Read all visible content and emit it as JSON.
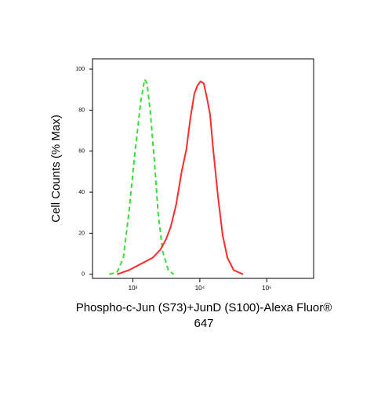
{
  "chart_data": {
    "type": "line",
    "ylabel": "Cell Counts (% Max)",
    "xlabel": [
      "Phospho-c-Jun (S73)+JunD (S100)-Alexa Fluor®",
      "647"
    ],
    "xscale": "log",
    "xlim": [
      250,
      500000
    ],
    "xticks": [
      {
        "value": 1000,
        "label": "10³"
      },
      {
        "value": 10000,
        "label": "10⁴"
      },
      {
        "value": 100000,
        "label": "10⁵"
      }
    ],
    "ylim": [
      -2,
      105
    ],
    "yticks": [
      0,
      20,
      40,
      60,
      80,
      100
    ],
    "grid": false,
    "series": [
      {
        "color": "#33e033",
        "style": "dashed",
        "x": [
          444,
          582,
          722,
          873,
          1056,
          1311,
          1501,
          1629,
          1815,
          2079,
          2378,
          2799,
          3384,
          4093
        ],
        "values": [
          0,
          1,
          8,
          30,
          57,
          84,
          95,
          93,
          80,
          57,
          30,
          11,
          2,
          0
        ]
      },
      {
        "color": "#ff2a2a",
        "style": "solid",
        "x": [
          582,
          873,
          1311,
          1968,
          2581,
          3121,
          3669,
          4436,
          5357,
          6310,
          7227,
          8282,
          9231,
          10275,
          11455,
          12764,
          14223,
          15849,
          18660,
          21928,
          25823,
          32063,
          44367
        ],
        "values": [
          0,
          2,
          5,
          8,
          12,
          17,
          23,
          34,
          50,
          61,
          76,
          88,
          92,
          94,
          93,
          86,
          78,
          61,
          38,
          19,
          8,
          2,
          0
        ]
      }
    ]
  }
}
